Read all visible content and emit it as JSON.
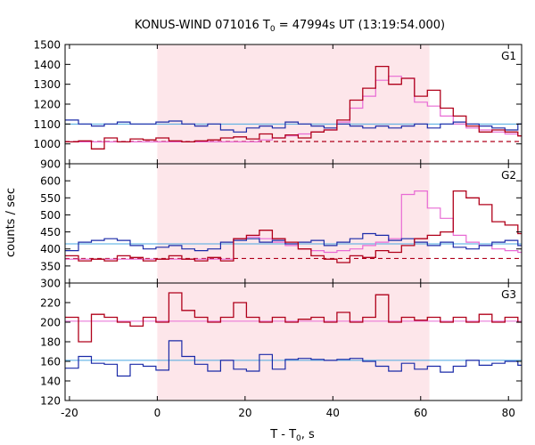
{
  "chart_data": {
    "type": "line",
    "title": "KONUS-WIND 071016 T",
    "title_sub": "0",
    "title_rest": " = 47994s UT (13:19:54.000)",
    "xlabel": "T - T",
    "xlabel_sub": "0",
    "xlabel_rest": ", s",
    "ylabel": "counts / sec",
    "xlim": [
      -21,
      83
    ],
    "xticks": [
      -20,
      0,
      20,
      40,
      60,
      80
    ],
    "xtick_labels": [
      "-20",
      "0",
      "20",
      "40",
      "60",
      "80"
    ],
    "shaded_interval": [
      0,
      62
    ],
    "shade_color": "#fde6ea",
    "colors": {
      "red": "#b0001a",
      "pink": "#e86ad4",
      "blue": "#1a2aa8",
      "cyan": "#4aa8e0"
    },
    "step_width": 2.944,
    "step_start": -20.9,
    "panels": [
      {
        "label": "G1",
        "ylim": [
          900,
          1500
        ],
        "yticks": [
          900,
          1000,
          1100,
          1200,
          1300,
          1400,
          1500
        ],
        "ytick_labels": [
          "900",
          "1000",
          "1100",
          "1200",
          "1300",
          "1400",
          "1500"
        ],
        "red_values": [
          1010,
          1015,
          975,
          1030,
          1010,
          1025,
          1020,
          1030,
          1015,
          1010,
          1015,
          1020,
          1030,
          1035,
          1025,
          1050,
          1030,
          1045,
          1030,
          1060,
          1070,
          1120,
          1220,
          1280,
          1390,
          1300,
          1330,
          1240,
          1270,
          1180,
          1140,
          1090,
          1060,
          1070,
          1060,
          1040,
          1030,
          1050,
          1060,
          1045,
          1040,
          1030,
          1020,
          1035,
          1025,
          1020
        ],
        "pink_values": [
          1010,
          1010,
          1010,
          1010,
          1010,
          1010,
          1010,
          1010,
          1010,
          1010,
          1010,
          1010,
          1010,
          1010,
          1010,
          1020,
          1030,
          1040,
          1050,
          1060,
          1070,
          1110,
          1180,
          1240,
          1320,
          1340,
          1330,
          1210,
          1190,
          1140,
          1100,
          1080,
          1070,
          1060,
          1050,
          1040,
          1030,
          1020,
          1010,
          1010,
          1010,
          1010,
          1010,
          1010,
          1010,
          1010
        ],
        "red_baseline": 1012,
        "blue_values": [
          1120,
          1100,
          1090,
          1100,
          1110,
          1100,
          1100,
          1110,
          1115,
          1100,
          1090,
          1100,
          1070,
          1060,
          1080,
          1090,
          1080,
          1110,
          1100,
          1090,
          1080,
          1100,
          1090,
          1080,
          1090,
          1080,
          1090,
          1100,
          1080,
          1100,
          1110,
          1100,
          1090,
          1080,
          1070,
          1100,
          1120,
          1090,
          1080,
          1100,
          1070,
          1090,
          1080,
          1090,
          1100,
          1110
        ],
        "cyan_baseline": 1100
      },
      {
        "label": "G2",
        "ylim": [
          300,
          650
        ],
        "yticks": [
          300,
          350,
          400,
          450,
          500,
          550,
          600
        ],
        "ytick_labels": [
          "300",
          "350",
          "400",
          "450",
          "500",
          "550",
          "600"
        ],
        "red_values": [
          380,
          365,
          370,
          365,
          380,
          375,
          365,
          370,
          380,
          370,
          365,
          375,
          365,
          430,
          440,
          455,
          430,
          420,
          400,
          380,
          370,
          360,
          380,
          375,
          395,
          390,
          410,
          430,
          440,
          450,
          570,
          550,
          530,
          480,
          470,
          445,
          440,
          410,
          420,
          400,
          390,
          380,
          370,
          380,
          390,
          370
        ],
        "pink_values": [
          370,
          370,
          370,
          370,
          370,
          370,
          370,
          370,
          370,
          370,
          370,
          370,
          370,
          430,
          435,
          430,
          420,
          410,
          400,
          395,
          390,
          395,
          400,
          410,
          420,
          430,
          560,
          570,
          520,
          490,
          440,
          420,
          410,
          400,
          395,
          390,
          385,
          380,
          375,
          375,
          375,
          375,
          375,
          375,
          375,
          375
        ],
        "red_baseline": 372,
        "blue_values": [
          395,
          420,
          425,
          430,
          425,
          410,
          400,
          405,
          410,
          400,
          395,
          400,
          420,
          425,
          430,
          420,
          425,
          415,
          420,
          425,
          410,
          420,
          430,
          445,
          440,
          425,
          430,
          420,
          410,
          420,
          405,
          400,
          410,
          420,
          425,
          410,
          400,
          405,
          420,
          430,
          415,
          420,
          410,
          395,
          420,
          425
        ],
        "cyan_baseline": 415
      },
      {
        "label": "G3",
        "ylim": [
          120,
          240
        ],
        "yticks": [
          120,
          140,
          160,
          180,
          200,
          220
        ],
        "ytick_labels": [
          "120",
          "140",
          "160",
          "180",
          "200",
          "220"
        ],
        "red_values": [
          205,
          180,
          208,
          205,
          200,
          196,
          205,
          200,
          230,
          212,
          205,
          200,
          205,
          220,
          205,
          200,
          205,
          200,
          203,
          205,
          200,
          210,
          200,
          205,
          228,
          200,
          205,
          202,
          205,
          200,
          205,
          200,
          208,
          200,
          205,
          200,
          205,
          200,
          193,
          193,
          200,
          222,
          210,
          193,
          203,
          205
        ],
        "pink_value": 201,
        "blue_values": [
          153,
          165,
          158,
          157,
          145,
          157,
          155,
          151,
          181,
          165,
          157,
          150,
          161,
          152,
          150,
          167,
          152,
          162,
          163,
          162,
          161,
          162,
          163,
          160,
          155,
          150,
          158,
          152,
          155,
          149,
          155,
          161,
          156,
          158,
          160,
          156,
          162,
          160,
          157,
          160,
          165,
          155,
          152,
          165,
          160,
          162
        ],
        "cyan_baseline": 161
      }
    ]
  }
}
